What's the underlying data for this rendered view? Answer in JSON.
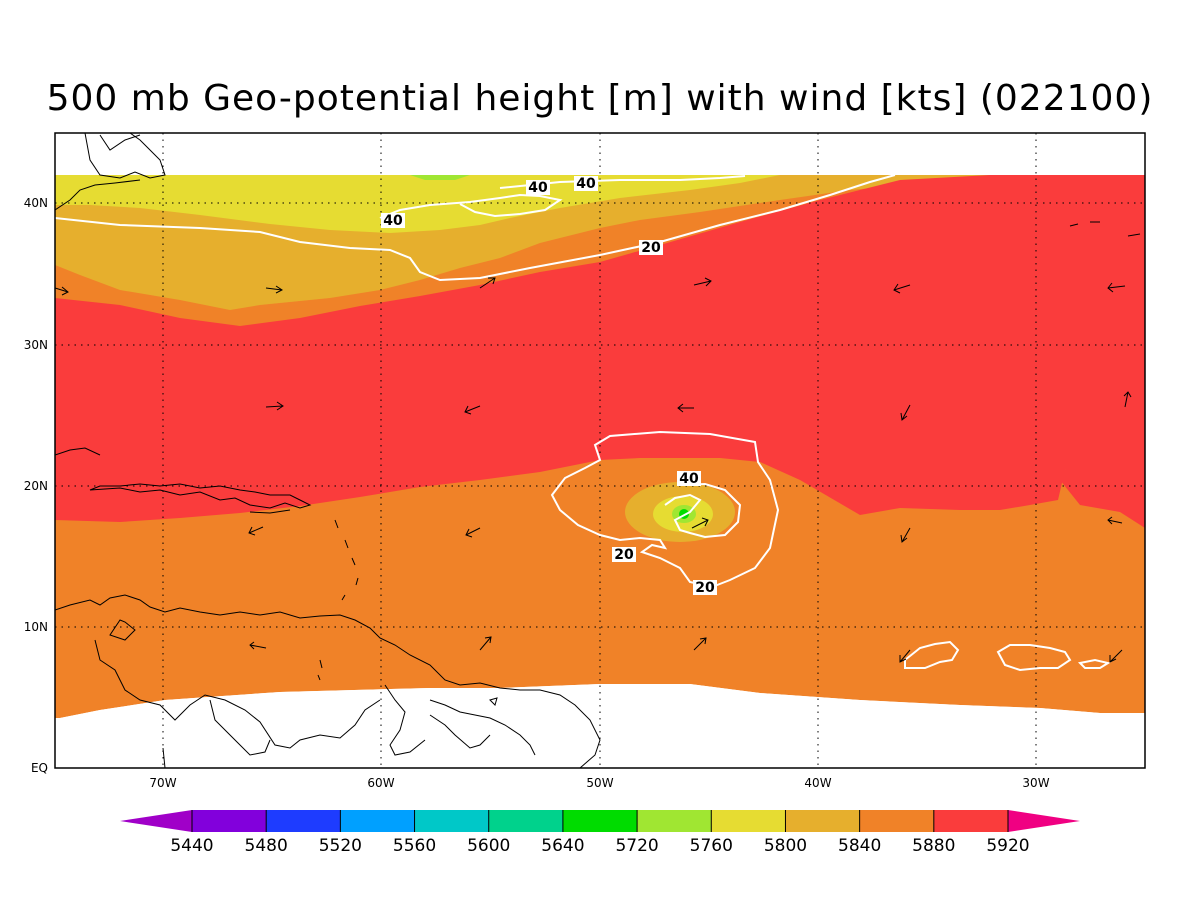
{
  "title": "500 mb Geo-potential height [m] with wind [kts] (022100)",
  "map": {
    "lat_labels": [
      "40N",
      "30N",
      "20N",
      "10N",
      "EQ"
    ],
    "lon_labels": [
      "70W",
      "60W",
      "50W",
      "40W",
      "30W"
    ],
    "contour_labels": [
      "40",
      "40",
      "40",
      "20",
      "40",
      "20",
      "20"
    ]
  },
  "colorbar": {
    "colors": [
      "#a000c8",
      "#8200dc",
      "#1e3cff",
      "#00a0ff",
      "#00c8c8",
      "#00d28c",
      "#00dc00",
      "#a0e632",
      "#e6dc32",
      "#e6af2d",
      "#f08228",
      "#fa3c3c",
      "#f00082"
    ],
    "labels": [
      "5440",
      "5480",
      "5520",
      "5560",
      "5600",
      "5640",
      "5720",
      "5760",
      "5800",
      "5840",
      "5880",
      "5920"
    ]
  }
}
